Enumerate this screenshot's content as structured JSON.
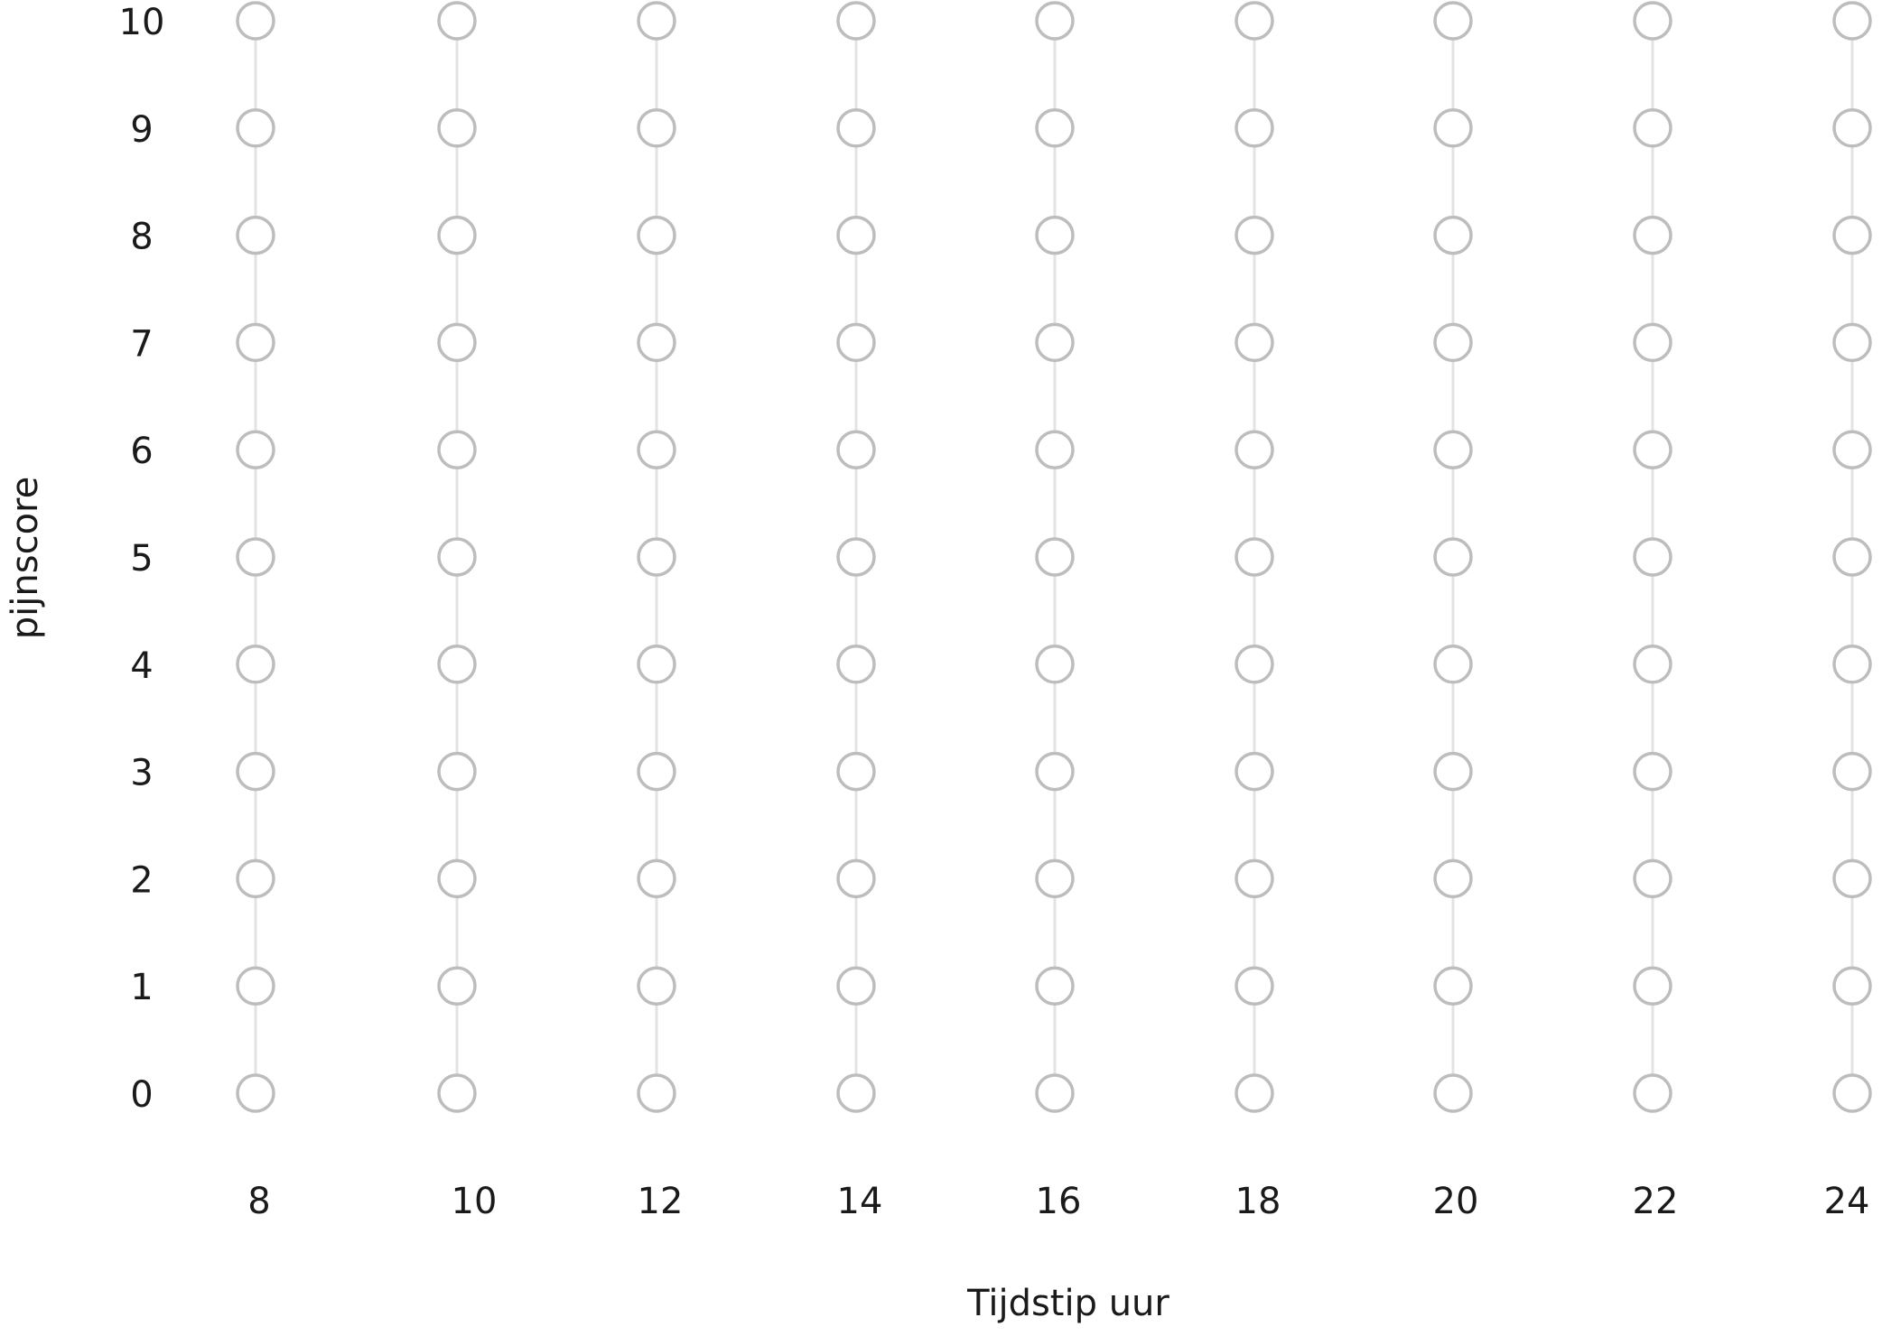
{
  "y_axis": {
    "label": "pijnscore",
    "ticks": [
      "10",
      "9",
      "8",
      "7",
      "6",
      "5",
      "4",
      "3",
      "2",
      "1",
      "0"
    ]
  },
  "x_axis": {
    "label": "Tijdstip uur",
    "ticks": [
      "8",
      "10",
      "12",
      "14",
      "16",
      "18",
      "20",
      "22",
      "24"
    ]
  }
}
